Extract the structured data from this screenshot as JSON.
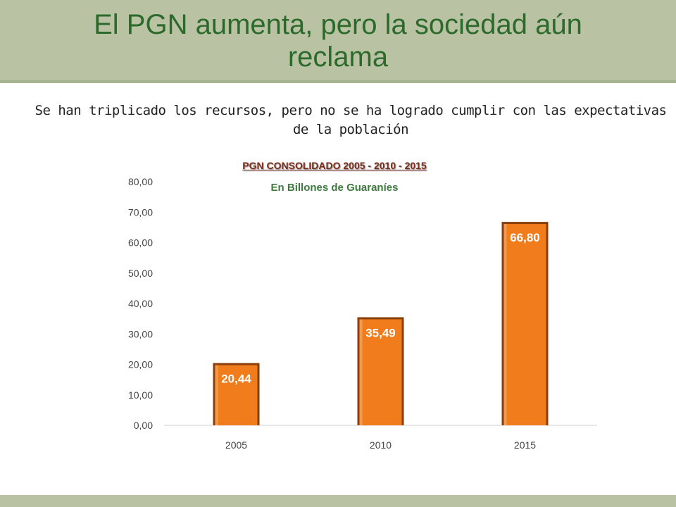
{
  "slide": {
    "title_line1": "El PGN aumenta, pero la sociedad aún",
    "title_line2": "reclama",
    "subtitle_line1": "Se han triplicado los recursos, pero no se ha logrado cumplir con las expectativas",
    "subtitle_line2": "de la población"
  },
  "colors": {
    "band": "#b9c3a3",
    "title": "#2c6a2c",
    "bar": "#f07c1c",
    "bar_dark": "#8a3f0a"
  },
  "chart_data": {
    "type": "bar",
    "title": "PGN CONSOLIDADO 2005 - 2010 - 2015",
    "subtitle": "En Billones de Guaraníes",
    "categories": [
      "2005",
      "2010",
      "2015"
    ],
    "values": [
      20.44,
      35.49,
      66.8
    ],
    "data_labels": [
      "20,44",
      "35,49",
      "66,80"
    ],
    "ylim": [
      0,
      80
    ],
    "yticks": [
      "0,00",
      "10,00",
      "20,00",
      "30,00",
      "40,00",
      "50,00",
      "60,00",
      "70,00",
      "80,00"
    ],
    "grid": false,
    "legend": "none"
  }
}
